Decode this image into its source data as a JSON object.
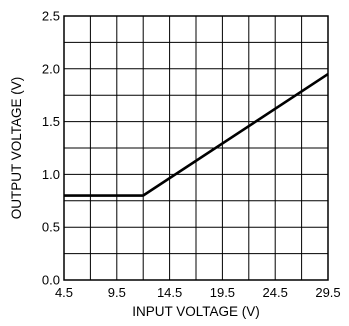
{
  "chart_data": {
    "type": "line",
    "xlabel": "INPUT VOLTAGE (V)",
    "ylabel": "OUTPUT VOLTAGE (V)",
    "xlim": [
      4.5,
      29.5
    ],
    "ylim": [
      0.0,
      2.5
    ],
    "x_ticks": [
      4.5,
      9.5,
      14.5,
      19.5,
      24.5,
      29.5
    ],
    "x_tick_labels": [
      "4.5",
      "9.5",
      "14.5",
      "19.5",
      "24.5",
      "29.5"
    ],
    "y_ticks": [
      0.0,
      0.5,
      1.0,
      1.5,
      2.0,
      2.5
    ],
    "y_tick_labels": [
      "0.0",
      "0.5",
      "1.0",
      "1.5",
      "2.0",
      "2.5"
    ],
    "x_grid_step": 2.5,
    "y_grid_step": 0.25,
    "grid": true,
    "series": [
      {
        "x": [
          4.5,
          12.0,
          29.5
        ],
        "y": [
          0.8,
          0.8,
          1.95
        ]
      }
    ]
  }
}
